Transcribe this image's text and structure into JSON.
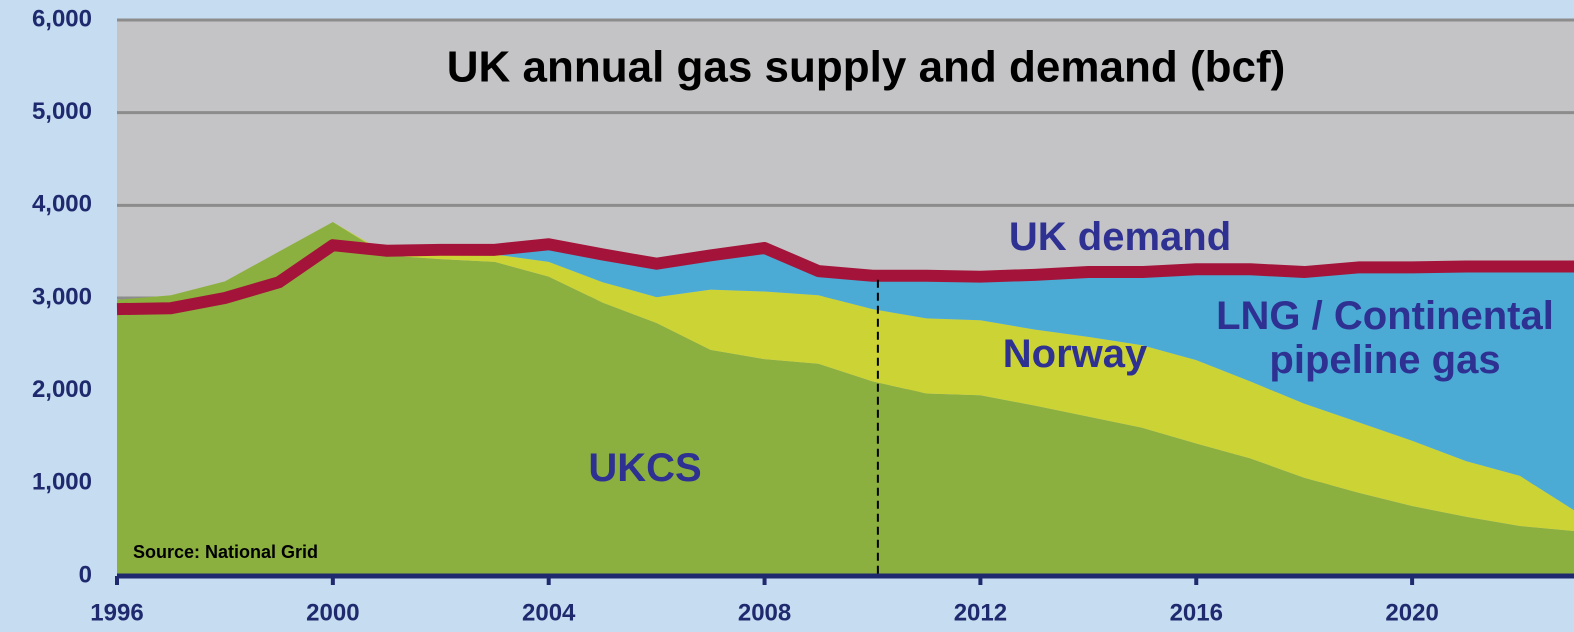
{
  "chart_data": {
    "type": "stacked_area",
    "title": "UK annual gas supply and demand (bcf)",
    "source": "Source: National Grid",
    "x": [
      1996,
      1997,
      1998,
      1999,
      2000,
      2001,
      2002,
      2003,
      2004,
      2005,
      2006,
      2007,
      2008,
      2009,
      2010,
      2011,
      2012,
      2013,
      2014,
      2015,
      2016,
      2017,
      2018,
      2019,
      2020,
      2021,
      2022,
      2023
    ],
    "series": [
      {
        "name": "UKCS",
        "color": "#8cb040",
        "values": [
          2980,
          3030,
          3180,
          3500,
          3820,
          3460,
          3420,
          3390,
          3230,
          2950,
          2730,
          2440,
          2340,
          2290,
          2100,
          1970,
          1950,
          1840,
          1720,
          1600,
          1430,
          1270,
          1060,
          900,
          755,
          640,
          540,
          485
        ]
      },
      {
        "name": "Norway",
        "color": "#ccd435",
        "values": [
          0,
          0,
          0,
          0,
          0,
          20,
          60,
          80,
          160,
          220,
          280,
          650,
          730,
          740,
          780,
          810,
          810,
          820,
          860,
          890,
          900,
          830,
          800,
          760,
          705,
          600,
          540,
          225
        ]
      },
      {
        "name": "LNG / Continental pipeline gas",
        "color": "#4babd4",
        "values": [
          0,
          0,
          0,
          0,
          0,
          0,
          0,
          50,
          190,
          300,
          360,
          370,
          470,
          260,
          360,
          460,
          470,
          590,
          700,
          790,
          980,
          1210,
          1420,
          1670,
          1870,
          2100,
          2260,
          2630
        ]
      }
    ],
    "demand": {
      "name": "UK demand",
      "color": "#a4143a",
      "values": [
        2880,
        2890,
        3000,
        3170,
        3570,
        3510,
        3520,
        3520,
        3580,
        3470,
        3370,
        3460,
        3540,
        3290,
        3240,
        3240,
        3230,
        3250,
        3280,
        3280,
        3310,
        3310,
        3280,
        3330,
        3330,
        3340,
        3340,
        3340
      ]
    },
    "divider": 2010.1,
    "xlim": [
      1996,
      2023
    ],
    "xticks": [
      1996,
      2000,
      2004,
      2008,
      2012,
      2016,
      2020
    ],
    "ylim": [
      0,
      6000
    ],
    "yticks": [
      0,
      {
        "value": 1000,
        "label": "1,000"
      },
      {
        "value": 2000,
        "label": "2,000"
      },
      {
        "value": 3000,
        "label": "3,000"
      },
      {
        "value": 4000,
        "label": "4,000"
      },
      {
        "value": 5000,
        "label": "5,000"
      },
      {
        "value": 6000,
        "label": "6,000"
      }
    ],
    "grid": true
  }
}
